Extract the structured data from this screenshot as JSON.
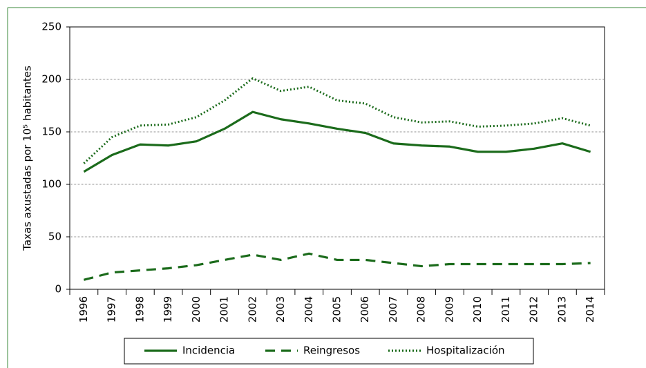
{
  "chart_data": {
    "type": "line",
    "y_label": "Taxas axustadas por 10⁵ habitantes",
    "categories": [
      "1996",
      "1997",
      "1998",
      "1999",
      "2000",
      "2001",
      "2002",
      "2003",
      "2004",
      "2005",
      "2006",
      "2007",
      "2008",
      "2009",
      "2010",
      "2011",
      "2012",
      "2013",
      "2014"
    ],
    "series": [
      {
        "name": "Incidencia",
        "color": "#1b6b1b",
        "style": "solid",
        "values": [
          112,
          128,
          138,
          137,
          141,
          153,
          169,
          162,
          158,
          153,
          149,
          139,
          137,
          136,
          131,
          131,
          134,
          139,
          131
        ]
      },
      {
        "name": "Reingresos",
        "color": "#1b6b1b",
        "style": "dashed",
        "values": [
          9,
          16,
          18,
          20,
          23,
          28,
          33,
          28,
          34,
          28,
          28,
          25,
          22,
          24,
          24,
          24,
          24,
          24,
          25
        ]
      },
      {
        "name": "Hospitalización",
        "color": "#1b6b1b",
        "style": "dotted",
        "values": [
          120,
          145,
          156,
          157,
          164,
          180,
          201,
          189,
          193,
          180,
          177,
          164,
          159,
          160,
          155,
          156,
          158,
          163,
          156
        ]
      }
    ],
    "ylim": [
      0,
      250
    ],
    "yticks": [
      0,
      50,
      100,
      150,
      200,
      250
    ],
    "grid": true,
    "legend": "bottom"
  }
}
